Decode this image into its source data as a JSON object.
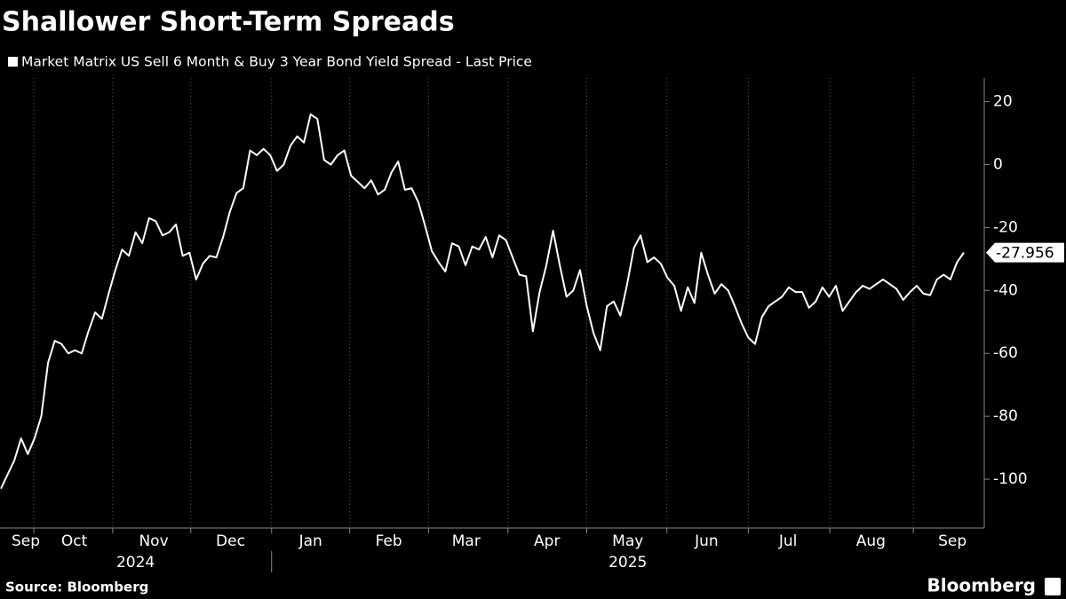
{
  "chart_data": {
    "type": "line",
    "title": "Shallower Short-Term Spreads",
    "source": "Source: Bloomberg",
    "brand": "Bloomberg",
    "categories": [
      null,
      null,
      null,
      null,
      null,
      null,
      null,
      null,
      null,
      null,
      null,
      null,
      null,
      null,
      null,
      null,
      null,
      null,
      null,
      null,
      null,
      null,
      null,
      null,
      null,
      null,
      null,
      null,
      null,
      null,
      null,
      null,
      null,
      null,
      null,
      null,
      null,
      null,
      null,
      null,
      null,
      null,
      null,
      null,
      null,
      null,
      null,
      null,
      null,
      null,
      null,
      null,
      null,
      null,
      null,
      null,
      null,
      null,
      null,
      null,
      null,
      null,
      null,
      null,
      null,
      null,
      null,
      null,
      null,
      null,
      null,
      null,
      null,
      null,
      null,
      null,
      null,
      null,
      null,
      null,
      null,
      null,
      null,
      null,
      null,
      null,
      null,
      null,
      null,
      null,
      null,
      null,
      null,
      null,
      null,
      null,
      null,
      null,
      null,
      null,
      null,
      null,
      null,
      null,
      null,
      null,
      null,
      null,
      null,
      null,
      null,
      null,
      null,
      null,
      null,
      null,
      null,
      null,
      null,
      null,
      null,
      null,
      null,
      null,
      null,
      null,
      null,
      null,
      null,
      null,
      null,
      null,
      null,
      null,
      null,
      null,
      null,
      null,
      null,
      null,
      null,
      null,
      null,
      null
    ],
    "series": [
      {
        "name": "Market Matrix US Sell 6 Month & Buy 3 Year Bond Yield Spread - Last Price",
        "color": "#ffffff",
        "values": [
          -103,
          -98.5,
          -94,
          -87,
          -92,
          -87,
          -80,
          -63,
          -56,
          -57,
          -60,
          -59,
          -60,
          -53,
          -47,
          -49,
          -41,
          -33.5,
          -27,
          -29,
          -21.5,
          -25,
          -17,
          -18,
          -22.5,
          -21.5,
          -19,
          -29,
          -28,
          -36.5,
          -31.5,
          -29,
          -29.5,
          -23,
          -15,
          -9,
          -7.5,
          4.5,
          3,
          5,
          3,
          -2,
          0,
          6,
          9,
          7,
          16,
          14.5,
          1.5,
          0,
          3,
          4.5,
          -3.5,
          -5.5,
          -7.5,
          -5,
          -9.5,
          -8,
          -2.5,
          1,
          -8,
          -7.5,
          -12,
          -19.5,
          -27.5,
          -31,
          -34,
          -25,
          -26,
          -32,
          -26,
          -27,
          -23,
          -29.5,
          -22.5,
          -24,
          -29.5,
          -35,
          -35.5,
          -53,
          -40.5,
          -32,
          -21,
          -32,
          -42,
          -40,
          -33.5,
          -45,
          -53.5,
          -59,
          -45,
          -43.5,
          -48,
          -38,
          -26.5,
          -22.5,
          -31,
          -29.5,
          -31.5,
          -36,
          -38.5,
          -46.5,
          -39,
          -44,
          -28,
          -35,
          -41,
          -38,
          -40,
          -45,
          -50.5,
          -55,
          -57,
          -48.5,
          -45,
          -43.5,
          -42,
          -39,
          -40.5,
          -40.5,
          -45.5,
          -43.5,
          -39,
          -42,
          -38.5,
          -46.5,
          -43.5,
          -40.5,
          -38.5,
          -39.5,
          -38,
          -36.5,
          -38,
          -39.5,
          -43,
          -40.5,
          -38.5,
          -41,
          -41.5,
          -36.5,
          -35,
          -36.5,
          -31,
          -27.956
        ]
      }
    ],
    "xlim": [
      0,
      143
    ],
    "xticks": [
      4.88,
      16.6,
      28.2,
      40.2,
      51.8,
      63.5,
      75.3,
      87.0,
      98.9,
      111.0,
      123.1,
      135.5
    ],
    "xlabels": [
      {
        "value": 3.7,
        "label": "Sep"
      },
      {
        "value": 10.9,
        "label": "Oct"
      },
      {
        "value": 22.7,
        "label": "Nov"
      },
      {
        "value": 34.1,
        "label": "Dec"
      },
      {
        "value": 46.0,
        "label": "Jan"
      },
      {
        "value": 57.6,
        "label": "Feb"
      },
      {
        "value": 69.1,
        "label": "Mar"
      },
      {
        "value": 81.1,
        "label": "Apr"
      },
      {
        "value": 93.1,
        "label": "May"
      },
      {
        "value": 104.8,
        "label": "Jun"
      },
      {
        "value": 116.9,
        "label": "Jul"
      },
      {
        "value": 129.2,
        "label": "Aug"
      },
      {
        "value": 141.3,
        "label": "Sep"
      }
    ],
    "year_labels": [
      {
        "value": 20.0,
        "label": "2024"
      },
      {
        "value": 93.1,
        "label": "2025"
      }
    ],
    "year_divider": 40.2,
    "ylim": [
      -115.5,
      27.5
    ],
    "yticks": [
      20,
      0,
      -20,
      -40,
      -60,
      -80,
      -100
    ],
    "grid": true
  }
}
